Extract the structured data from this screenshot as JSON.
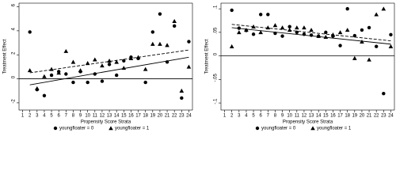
{
  "chart_data": [
    {
      "type": "scatter",
      "ylabel": "Treatment Effect",
      "xlabel": "Propensity Score Strata",
      "x": [
        2,
        3,
        4,
        5,
        6,
        7,
        8,
        9,
        10,
        11,
        12,
        13,
        14,
        15,
        16,
        17,
        18,
        19,
        20,
        21,
        22,
        23,
        24
      ],
      "series": [
        {
          "name": "youngfloater = 0",
          "marker": "circle",
          "color": "#000000",
          "values": [
            3.9,
            -0.9,
            -1.4,
            0.3,
            0.6,
            0.4,
            -0.3,
            0.6,
            -0.3,
            0.4,
            -0.2,
            1.2,
            0.3,
            1.5,
            1.8,
            1.7,
            -0.3,
            3.9,
            5.4,
            1.4,
            4.4,
            -1.6,
            3.1
          ]
        },
        {
          "name": "youngfloater = 1",
          "marker": "triangle",
          "color": "#000000",
          "values": [
            0.7,
            -0.8,
            0.2,
            0.8,
            0.5,
            2.3,
            1.4,
            0.7,
            1.3,
            1.6,
            1.1,
            1.5,
            1.4,
            0.9,
            1.7,
            1.8,
            0.8,
            2.9,
            2.9,
            2.8,
            4.8,
            -1.0,
            1.0
          ]
        }
      ],
      "fits": [
        {
          "style": "solid",
          "x": [
            2,
            24
          ],
          "values": [
            -0.5,
            1.8
          ]
        },
        {
          "style": "dashed",
          "x": [
            2,
            24
          ],
          "values": [
            0.5,
            2.4
          ]
        }
      ],
      "hline": 0,
      "xlim": [
        0.5,
        24.5
      ],
      "xticks": [
        1,
        2,
        3,
        4,
        5,
        6,
        7,
        8,
        9,
        10,
        11,
        12,
        13,
        14,
        15,
        16,
        17,
        18,
        19,
        20,
        21,
        22,
        23,
        24
      ],
      "ylim": [
        -2.6,
        6.3
      ],
      "yticks": [
        -2,
        0,
        2,
        4,
        6
      ]
    },
    {
      "type": "scatter",
      "ylabel": "Treatment Effect",
      "xlabel": "Propensity Score Strata",
      "x": [
        2,
        3,
        4,
        5,
        6,
        7,
        8,
        9,
        10,
        11,
        12,
        13,
        14,
        15,
        16,
        17,
        18,
        19,
        20,
        21,
        22,
        23,
        24
      ],
      "series": [
        {
          "name": "youngfloater = 0",
          "marker": "circle",
          "color": "#000000",
          "values": [
            0.097,
            0.059,
            0.054,
            0.046,
            0.088,
            0.088,
            0.048,
            0.042,
            0.062,
            0.05,
            0.046,
            0.044,
            0.042,
            0.05,
            0.042,
            0.022,
            0.1,
            0.043,
            0.055,
            0.06,
            0.02,
            -0.08,
            0.045
          ]
        },
        {
          "name": "youngfloater = 1",
          "marker": "triangle",
          "color": "#000000",
          "values": [
            0.02,
            0.05,
            0.055,
            0.062,
            0.05,
            0.06,
            0.065,
            0.06,
            0.055,
            0.06,
            0.06,
            0.055,
            0.042,
            0.04,
            0.045,
            0.05,
            0.055,
            -0.005,
            0.03,
            -0.008,
            0.088,
            0.1,
            0.02
          ]
        }
      ],
      "fits": [
        {
          "style": "solid",
          "x": [
            2,
            24
          ],
          "values": [
            0.06,
            0.025
          ]
        },
        {
          "style": "dashed",
          "x": [
            2,
            24
          ],
          "values": [
            0.067,
            0.032
          ]
        }
      ],
      "hline": 0,
      "xlim": [
        0.5,
        24.5
      ],
      "xticks": [
        1,
        2,
        3,
        4,
        5,
        6,
        7,
        8,
        9,
        10,
        11,
        12,
        13,
        14,
        15,
        16,
        17,
        18,
        19,
        20,
        21,
        22,
        23,
        24
      ],
      "ylim": [
        -0.115,
        0.112
      ],
      "yticks": [
        {
          "value": -0.1,
          "label": "-.1"
        },
        {
          "value": -0.05,
          "label": "-.05"
        },
        {
          "value": 0,
          "label": "0"
        },
        {
          "value": 0.05,
          "label": ".05"
        },
        {
          "value": 0.1,
          "label": ".1"
        }
      ]
    }
  ]
}
